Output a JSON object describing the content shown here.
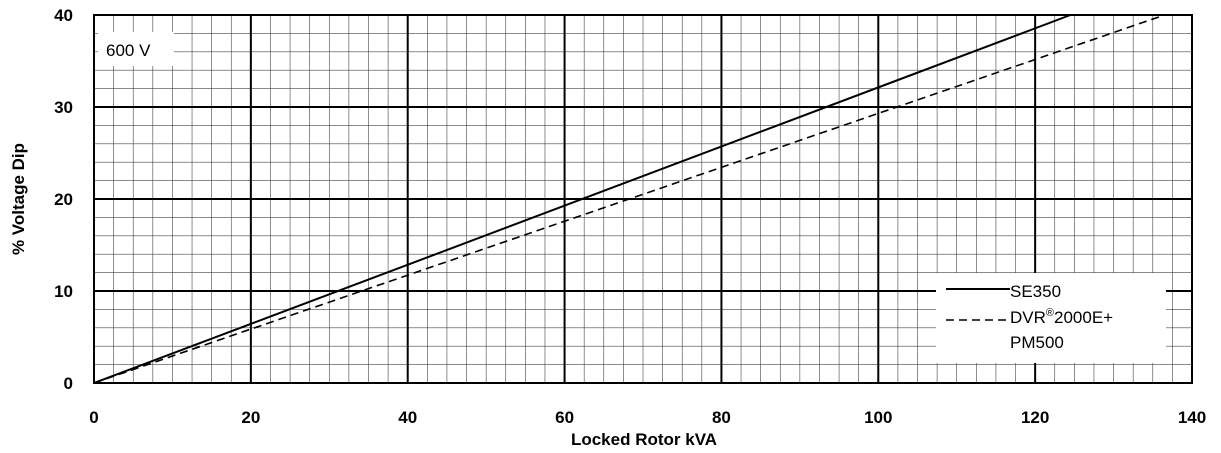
{
  "chart_data": {
    "type": "line",
    "xlabel": "Locked Rotor kVA",
    "ylabel": "% Voltage Dip",
    "xlim": [
      0,
      140
    ],
    "ylim": [
      0,
      40
    ],
    "x_ticks": [
      "0",
      "20",
      "40",
      "60",
      "80",
      "100",
      "120",
      "140"
    ],
    "y_ticks": [
      "0",
      "10",
      "20",
      "30",
      "40"
    ],
    "grid": "major every 20 kVA / 10 %, minor every 2.5 kVA / 2 %",
    "annotation": "600 V",
    "legend_placement": "bottom-right",
    "series": [
      {
        "name": "SE350",
        "style": "solid",
        "x": [
          0,
          124.5
        ],
        "y": [
          0,
          40
        ]
      },
      {
        "name": "DVR®2000E+ PM500",
        "name_parts": {
          "pre": "DVR",
          "sup": "®",
          "post": "2000E+",
          "line2": "PM500"
        },
        "style": "dashed",
        "x": [
          0,
          136.5
        ],
        "y": [
          0,
          40
        ]
      }
    ]
  }
}
